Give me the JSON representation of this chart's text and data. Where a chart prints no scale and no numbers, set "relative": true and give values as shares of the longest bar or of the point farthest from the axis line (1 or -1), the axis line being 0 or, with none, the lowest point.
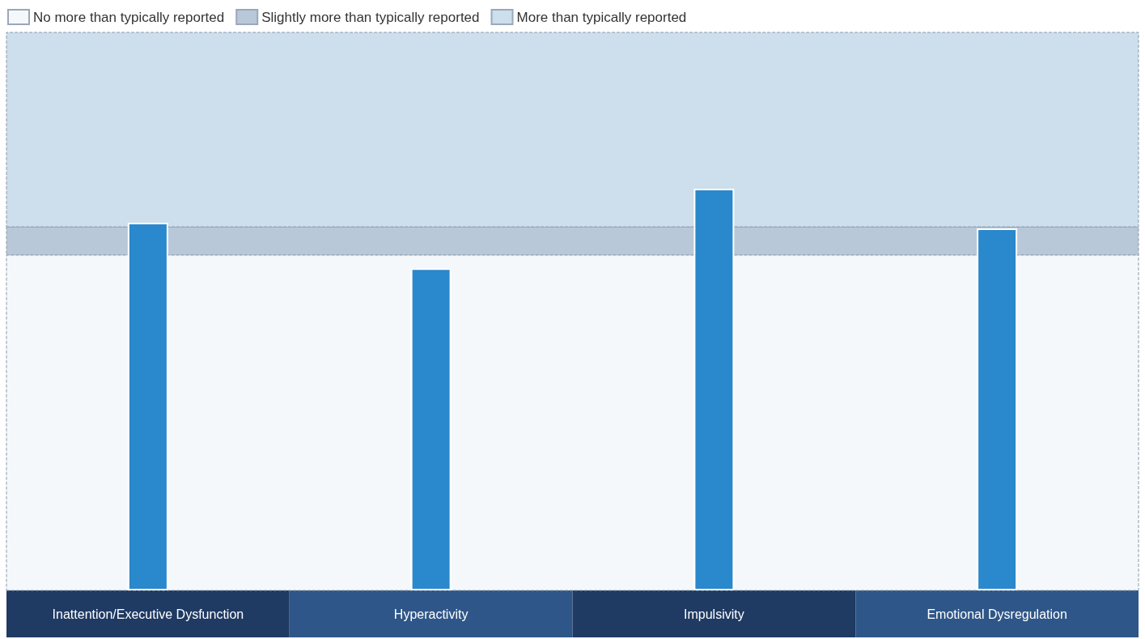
{
  "chart_data": {
    "type": "bar",
    "categories": [
      "Inattention/Executive Dysfunction",
      "Hyperactivity",
      "Impulsivity",
      "Emotional Dysregulation"
    ],
    "values": [
      0.915,
      0.802,
      1,
      0.901
    ],
    "color": "#2a88cc",
    "relative": true,
    "legend": "top left",
    "bands": [
      {
        "axis": "y",
        "from": 0,
        "to": 0.835,
        "label": "No more than typically reported",
        "color": "#f5f8fb"
      },
      {
        "axis": "y",
        "from": 0.835,
        "to": 0.905,
        "label": "Slightly more than typically reported",
        "color": "#b8c8d8"
      },
      {
        "axis": "y",
        "from": 0.905,
        "to": 1.389,
        "label": "More than typically reported",
        "color": "#cddeec"
      }
    ]
  }
}
